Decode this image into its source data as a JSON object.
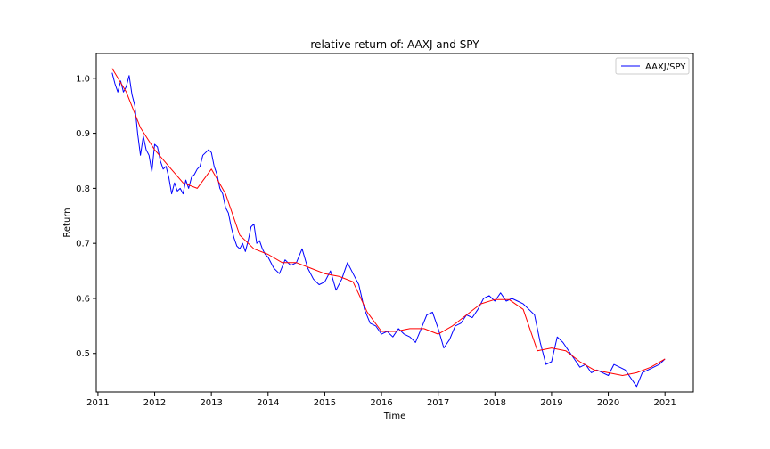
{
  "chart_data": {
    "type": "line",
    "title": "relative return of: AAXJ and SPY",
    "xlabel": "Time",
    "ylabel": "Return",
    "xlim": [
      2010.97,
      2021.5
    ],
    "ylim": [
      0.43,
      1.045
    ],
    "xticks": [
      2011,
      2012,
      2013,
      2014,
      2015,
      2016,
      2017,
      2018,
      2019,
      2020,
      2021
    ],
    "yticks": [
      0.5,
      0.6,
      0.7,
      0.8,
      0.9,
      1.0
    ],
    "ytick_labels": [
      "0.5",
      "0.6",
      "0.7",
      "0.8",
      "0.9",
      "1.0"
    ],
    "grid": false,
    "legend": {
      "position": "top-right",
      "entries": [
        "AAXJ/SPY"
      ]
    },
    "colors": {
      "raw": "#0000ff",
      "trend": "#ff0000"
    },
    "series": [
      {
        "name": "AAXJ/SPY",
        "x": [
          2011.25,
          2011.3,
          2011.35,
          2011.4,
          2011.45,
          2011.5,
          2011.55,
          2011.6,
          2011.65,
          2011.7,
          2011.75,
          2011.8,
          2011.85,
          2011.9,
          2011.95,
          2012.0,
          2012.05,
          2012.1,
          2012.15,
          2012.2,
          2012.25,
          2012.3,
          2012.35,
          2012.4,
          2012.45,
          2012.5,
          2012.55,
          2012.6,
          2012.65,
          2012.7,
          2012.75,
          2012.8,
          2012.85,
          2012.9,
          2012.95,
          2013.0,
          2013.05,
          2013.1,
          2013.15,
          2013.2,
          2013.25,
          2013.3,
          2013.35,
          2013.4,
          2013.45,
          2013.5,
          2013.55,
          2013.6,
          2013.65,
          2013.7,
          2013.75,
          2013.8,
          2013.85,
          2013.9,
          2013.95,
          2014.0,
          2014.1,
          2014.2,
          2014.3,
          2014.4,
          2014.5,
          2014.6,
          2014.7,
          2014.8,
          2014.9,
          2015.0,
          2015.1,
          2015.2,
          2015.3,
          2015.4,
          2015.5,
          2015.6,
          2015.7,
          2015.8,
          2015.9,
          2016.0,
          2016.1,
          2016.2,
          2016.3,
          2016.4,
          2016.5,
          2016.6,
          2016.7,
          2016.8,
          2016.9,
          2017.0,
          2017.1,
          2017.2,
          2017.3,
          2017.4,
          2017.5,
          2017.6,
          2017.7,
          2017.8,
          2017.9,
          2018.0,
          2018.1,
          2018.2,
          2018.3,
          2018.4,
          2018.5,
          2018.6,
          2018.7,
          2018.8,
          2018.9,
          2019.0,
          2019.1,
          2019.2,
          2019.3,
          2019.4,
          2019.5,
          2019.6,
          2019.7,
          2019.8,
          2019.9,
          2020.0,
          2020.1,
          2020.2,
          2020.3,
          2020.4,
          2020.5,
          2020.6,
          2020.7,
          2020.8,
          2020.9,
          2021.0
        ],
        "y": [
          1.01,
          0.99,
          0.975,
          0.995,
          0.975,
          0.985,
          1.005,
          0.97,
          0.95,
          0.9,
          0.86,
          0.895,
          0.87,
          0.86,
          0.83,
          0.88,
          0.875,
          0.85,
          0.835,
          0.84,
          0.82,
          0.79,
          0.81,
          0.795,
          0.8,
          0.79,
          0.815,
          0.8,
          0.82,
          0.825,
          0.835,
          0.84,
          0.86,
          0.865,
          0.87,
          0.865,
          0.84,
          0.825,
          0.8,
          0.79,
          0.765,
          0.755,
          0.73,
          0.71,
          0.695,
          0.69,
          0.7,
          0.685,
          0.705,
          0.73,
          0.735,
          0.7,
          0.705,
          0.69,
          0.68,
          0.675,
          0.655,
          0.645,
          0.67,
          0.66,
          0.665,
          0.69,
          0.655,
          0.635,
          0.625,
          0.63,
          0.65,
          0.615,
          0.635,
          0.665,
          0.645,
          0.625,
          0.58,
          0.555,
          0.55,
          0.535,
          0.54,
          0.53,
          0.545,
          0.535,
          0.53,
          0.52,
          0.545,
          0.57,
          0.575,
          0.545,
          0.51,
          0.525,
          0.55,
          0.555,
          0.57,
          0.565,
          0.58,
          0.6,
          0.605,
          0.595,
          0.61,
          0.595,
          0.6,
          0.595,
          0.59,
          0.58,
          0.57,
          0.52,
          0.48,
          0.485,
          0.53,
          0.52,
          0.505,
          0.49,
          0.475,
          0.48,
          0.465,
          0.47,
          0.465,
          0.46,
          0.48,
          0.475,
          0.47,
          0.455,
          0.44,
          0.465,
          0.47,
          0.475,
          0.48,
          0.49
        ]
      },
      {
        "name": "",
        "x": [
          2011.25,
          2011.5,
          2011.75,
          2012.0,
          2012.25,
          2012.5,
          2012.75,
          2013.0,
          2013.25,
          2013.5,
          2013.75,
          2014.0,
          2014.25,
          2014.5,
          2014.75,
          2015.0,
          2015.25,
          2015.5,
          2015.75,
          2016.0,
          2016.25,
          2016.5,
          2016.75,
          2017.0,
          2017.25,
          2017.5,
          2017.75,
          2018.0,
          2018.25,
          2018.5,
          2018.75,
          2019.0,
          2019.25,
          2019.5,
          2019.75,
          2020.0,
          2020.25,
          2020.5,
          2020.75,
          2021.0
        ],
        "y": [
          1.018,
          0.975,
          0.91,
          0.87,
          0.84,
          0.81,
          0.8,
          0.835,
          0.79,
          0.715,
          0.69,
          0.68,
          0.665,
          0.665,
          0.655,
          0.645,
          0.64,
          0.63,
          0.575,
          0.54,
          0.54,
          0.545,
          0.545,
          0.535,
          0.55,
          0.57,
          0.59,
          0.598,
          0.598,
          0.58,
          0.505,
          0.51,
          0.505,
          0.485,
          0.47,
          0.465,
          0.46,
          0.465,
          0.475,
          0.49
        ]
      }
    ]
  }
}
